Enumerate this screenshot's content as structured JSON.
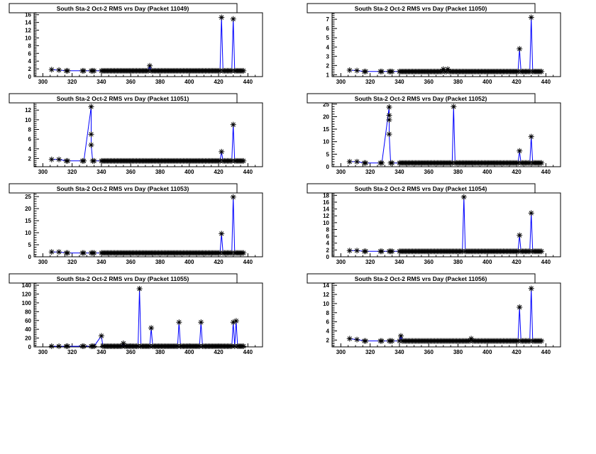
{
  "colors": {
    "line": "#0000ff",
    "marker": "#000000",
    "frame": "#000000",
    "background": "#ffffff"
  },
  "chart_data": [
    {
      "type": "line",
      "title": "South Sta-2 Oct-2 RMS vrs Day (Packet 11049)",
      "xlim": [
        294,
        450
      ],
      "ylim": [
        0,
        16.5
      ],
      "xticks": [
        300,
        320,
        340,
        360,
        380,
        400,
        420,
        440
      ],
      "yticks": [
        0,
        2,
        4,
        6,
        8,
        10,
        12,
        14,
        16
      ],
      "baseline": 1.5,
      "points": [
        [
          306,
          1.8
        ],
        [
          311,
          1.7
        ],
        [
          373,
          2.8
        ],
        [
          422,
          15.3
        ],
        [
          430,
          14.9
        ]
      ]
    },
    {
      "type": "line",
      "title": "South Sta-2 Oct-2 RMS vrs Day (Packet 11050)",
      "xlim": [
        294,
        450
      ],
      "ylim": [
        0.8,
        7.7
      ],
      "xticks": [
        300,
        320,
        340,
        360,
        380,
        400,
        420,
        440
      ],
      "yticks": [
        1,
        2,
        3,
        4,
        5,
        6,
        7
      ],
      "baseline": 1.35,
      "points": [
        [
          306,
          1.5
        ],
        [
          311,
          1.45
        ],
        [
          370,
          1.6
        ],
        [
          373,
          1.6
        ],
        [
          422,
          3.8
        ],
        [
          430,
          7.2
        ]
      ]
    },
    {
      "type": "line",
      "title": "South Sta-2 Oct-2 RMS vrs Day (Packet 11051)",
      "xlim": [
        294,
        450
      ],
      "ylim": [
        0.3,
        13.5
      ],
      "xticks": [
        300,
        320,
        340,
        360,
        380,
        400,
        420,
        440
      ],
      "yticks": [
        2,
        4,
        6,
        8,
        10,
        12
      ],
      "baseline": 1.5,
      "points": [
        [
          306,
          1.8
        ],
        [
          311,
          1.8
        ],
        [
          333,
          12.7
        ],
        [
          333,
          7
        ],
        [
          333,
          4.8
        ],
        [
          422,
          3.4
        ],
        [
          430,
          9
        ]
      ]
    },
    {
      "type": "line",
      "title": "South Sta-2 Oct-2 RMS vrs Day (Packet 11052)",
      "xlim": [
        294,
        450
      ],
      "ylim": [
        0,
        25.5
      ],
      "xticks": [
        300,
        320,
        340,
        360,
        380,
        400,
        420,
        440
      ],
      "yticks": [
        0,
        5,
        10,
        15,
        20,
        25
      ],
      "baseline": 1.5,
      "points": [
        [
          306,
          2
        ],
        [
          311,
          2
        ],
        [
          333,
          23.8
        ],
        [
          333,
          20.5
        ],
        [
          333,
          18.7
        ],
        [
          333,
          13
        ],
        [
          377,
          24
        ],
        [
          422,
          6.3
        ],
        [
          430,
          12
        ]
      ]
    },
    {
      "type": "line",
      "title": "South Sta-2 Oct-2 RMS vrs Day (Packet 11053)",
      "xlim": [
        294,
        450
      ],
      "ylim": [
        0,
        26.5
      ],
      "xticks": [
        300,
        320,
        340,
        360,
        380,
        400,
        420,
        440
      ],
      "yticks": [
        0,
        5,
        10,
        15,
        20,
        25
      ],
      "baseline": 1.6,
      "points": [
        [
          306,
          2
        ],
        [
          311,
          2
        ],
        [
          422,
          9.6
        ],
        [
          430,
          24.8
        ]
      ]
    },
    {
      "type": "line",
      "title": "South Sta-2 Oct-2 RMS vrs Day (Packet 11054)",
      "xlim": [
        294,
        450
      ],
      "ylim": [
        0,
        18.7
      ],
      "xticks": [
        300,
        320,
        340,
        360,
        380,
        400,
        420,
        440
      ],
      "yticks": [
        0,
        2,
        4,
        6,
        8,
        10,
        12,
        14,
        16,
        18
      ],
      "baseline": 1.6,
      "points": [
        [
          306,
          1.8
        ],
        [
          311,
          1.8
        ],
        [
          384,
          17.5
        ],
        [
          422,
          6.3
        ],
        [
          430,
          12.8
        ]
      ]
    },
    {
      "type": "line",
      "title": "South Sta-2 Oct-2 RMS vrs Day (Packet 11055)",
      "xlim": [
        294,
        450
      ],
      "ylim": [
        0,
        145
      ],
      "xticks": [
        300,
        320,
        340,
        360,
        380,
        400,
        420,
        440
      ],
      "yticks": [
        0,
        20,
        40,
        60,
        80,
        100,
        120,
        140
      ],
      "baseline": 1.5,
      "points": [
        [
          340,
          25
        ],
        [
          355,
          8
        ],
        [
          366,
          132
        ],
        [
          374,
          43
        ],
        [
          393,
          56
        ],
        [
          408,
          56
        ],
        [
          430,
          56
        ],
        [
          432,
          59
        ]
      ]
    },
    {
      "type": "line",
      "title": "South Sta-2 Oct-2 RMS vrs Day (Packet 11056)",
      "xlim": [
        294,
        450
      ],
      "ylim": [
        0.5,
        14.5
      ],
      "xticks": [
        300,
        320,
        340,
        360,
        380,
        400,
        420,
        440
      ],
      "yticks": [
        2,
        4,
        6,
        8,
        10,
        12,
        14
      ],
      "baseline": 1.8,
      "points": [
        [
          306,
          2.3
        ],
        [
          311,
          2.1
        ],
        [
          341,
          2.9
        ],
        [
          389,
          2.3
        ],
        [
          422,
          9.2
        ],
        [
          430,
          13.3
        ]
      ]
    }
  ]
}
